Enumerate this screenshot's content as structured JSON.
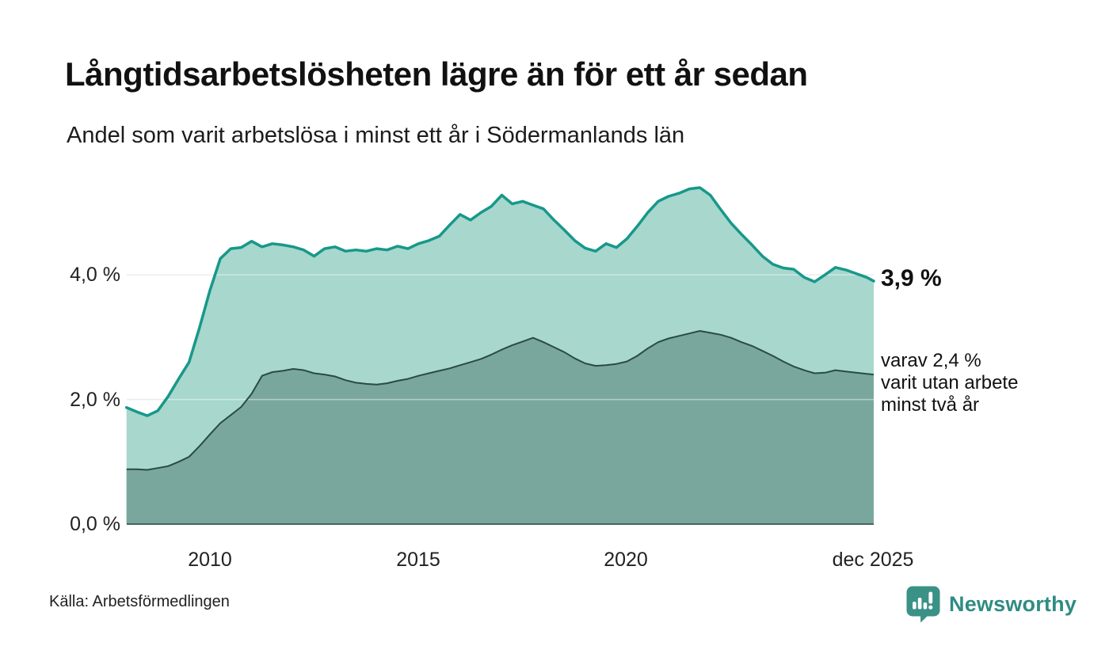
{
  "header": {
    "title": "Långtidsarbetslösheten lägre än för ett år sedan",
    "subtitle": "Andel som varit arbetslösa i minst ett år i Södermanlands län"
  },
  "annotations": {
    "latest_total": "3,9 %",
    "breakdown_line1": "varav 2,4 %",
    "breakdown_line2": "varit utan arbete",
    "breakdown_line3": "minst två år"
  },
  "footer": {
    "source": "Källa: Arbetsförmedlingen",
    "brand": "Newsworthy"
  },
  "colors": {
    "line_total": "#17988a",
    "fill_total": "#a7d7cd",
    "line_two_year": "#2b4a45",
    "fill_two_year": "#79a79e",
    "gridline": "#dcdcdc",
    "gridline_over_fill": "rgba(255,255,255,0.45)",
    "axis_baseline": "#4a6561",
    "brand_teal": "#2f8c83",
    "logo_teal": "#3a9186"
  },
  "chart_data": {
    "type": "area",
    "title": "Långtidsarbetslösheten lägre än för ett år sedan",
    "subtitle": "Andel som varit arbetslösa i minst ett år i Södermanlands län",
    "unit": "%",
    "x_axis": {
      "range": [
        2008.0,
        2025.92
      ],
      "ticks": [
        {
          "x": 2010,
          "label": "2010"
        },
        {
          "x": 2015,
          "label": "2015"
        },
        {
          "x": 2020,
          "label": "2020"
        },
        {
          "x": 2025.92,
          "label": "dec 2025"
        }
      ]
    },
    "y_axis": {
      "range": [
        0,
        5.8
      ],
      "gridlines": [
        2.0,
        4.0
      ],
      "ticks": [
        {
          "v": 0,
          "label": "0,0 %"
        },
        {
          "v": 2,
          "label": "2,0 %"
        },
        {
          "v": 4,
          "label": "4,0 %"
        }
      ]
    },
    "legend": "none",
    "series": [
      {
        "name": "Arbetslösa minst ett år",
        "latest_value": 3.9,
        "points": [
          [
            2008.0,
            1.87
          ],
          [
            2008.25,
            1.8
          ],
          [
            2008.5,
            1.74
          ],
          [
            2008.75,
            1.82
          ],
          [
            2009.0,
            2.05
          ],
          [
            2009.25,
            2.33
          ],
          [
            2009.5,
            2.6
          ],
          [
            2009.75,
            3.15
          ],
          [
            2010.0,
            3.75
          ],
          [
            2010.25,
            4.26
          ],
          [
            2010.5,
            4.42
          ],
          [
            2010.75,
            4.44
          ],
          [
            2011.0,
            4.54
          ],
          [
            2011.25,
            4.45
          ],
          [
            2011.5,
            4.5
          ],
          [
            2011.75,
            4.48
          ],
          [
            2012.0,
            4.45
          ],
          [
            2012.25,
            4.4
          ],
          [
            2012.5,
            4.3
          ],
          [
            2012.75,
            4.42
          ],
          [
            2013.0,
            4.45
          ],
          [
            2013.25,
            4.38
          ],
          [
            2013.5,
            4.4
          ],
          [
            2013.75,
            4.38
          ],
          [
            2014.0,
            4.42
          ],
          [
            2014.25,
            4.4
          ],
          [
            2014.5,
            4.46
          ],
          [
            2014.75,
            4.42
          ],
          [
            2015.0,
            4.5
          ],
          [
            2015.25,
            4.55
          ],
          [
            2015.5,
            4.62
          ],
          [
            2015.75,
            4.8
          ],
          [
            2016.0,
            4.97
          ],
          [
            2016.25,
            4.88
          ],
          [
            2016.5,
            5.0
          ],
          [
            2016.75,
            5.1
          ],
          [
            2017.0,
            5.28
          ],
          [
            2017.25,
            5.14
          ],
          [
            2017.5,
            5.18
          ],
          [
            2017.75,
            5.12
          ],
          [
            2018.0,
            5.06
          ],
          [
            2018.25,
            4.88
          ],
          [
            2018.5,
            4.72
          ],
          [
            2018.75,
            4.55
          ],
          [
            2019.0,
            4.43
          ],
          [
            2019.25,
            4.38
          ],
          [
            2019.5,
            4.5
          ],
          [
            2019.75,
            4.44
          ],
          [
            2020.0,
            4.58
          ],
          [
            2020.25,
            4.78
          ],
          [
            2020.5,
            5.0
          ],
          [
            2020.75,
            5.18
          ],
          [
            2021.0,
            5.26
          ],
          [
            2021.25,
            5.31
          ],
          [
            2021.5,
            5.38
          ],
          [
            2021.75,
            5.4
          ],
          [
            2022.0,
            5.28
          ],
          [
            2022.25,
            5.05
          ],
          [
            2022.5,
            4.83
          ],
          [
            2022.75,
            4.65
          ],
          [
            2023.0,
            4.48
          ],
          [
            2023.25,
            4.3
          ],
          [
            2023.5,
            4.17
          ],
          [
            2023.75,
            4.11
          ],
          [
            2024.0,
            4.09
          ],
          [
            2024.25,
            3.96
          ],
          [
            2024.5,
            3.89
          ],
          [
            2024.75,
            4.0
          ],
          [
            2025.0,
            4.12
          ],
          [
            2025.25,
            4.08
          ],
          [
            2025.5,
            4.02
          ],
          [
            2025.75,
            3.96
          ],
          [
            2025.92,
            3.9
          ]
        ]
      },
      {
        "name": "Arbetslösa minst två år",
        "latest_value": 2.4,
        "points": [
          [
            2008.0,
            0.88
          ],
          [
            2008.25,
            0.88
          ],
          [
            2008.5,
            0.87
          ],
          [
            2008.75,
            0.9
          ],
          [
            2009.0,
            0.93
          ],
          [
            2009.25,
            1.0
          ],
          [
            2009.5,
            1.08
          ],
          [
            2009.75,
            1.25
          ],
          [
            2010.0,
            1.44
          ],
          [
            2010.25,
            1.62
          ],
          [
            2010.5,
            1.75
          ],
          [
            2010.75,
            1.88
          ],
          [
            2011.0,
            2.09
          ],
          [
            2011.25,
            2.38
          ],
          [
            2011.5,
            2.44
          ],
          [
            2011.75,
            2.46
          ],
          [
            2012.0,
            2.49
          ],
          [
            2012.25,
            2.47
          ],
          [
            2012.5,
            2.42
          ],
          [
            2012.75,
            2.4
          ],
          [
            2013.0,
            2.37
          ],
          [
            2013.25,
            2.31
          ],
          [
            2013.5,
            2.27
          ],
          [
            2013.75,
            2.25
          ],
          [
            2014.0,
            2.24
          ],
          [
            2014.25,
            2.26
          ],
          [
            2014.5,
            2.3
          ],
          [
            2014.75,
            2.33
          ],
          [
            2015.0,
            2.38
          ],
          [
            2015.25,
            2.42
          ],
          [
            2015.5,
            2.46
          ],
          [
            2015.75,
            2.5
          ],
          [
            2016.0,
            2.55
          ],
          [
            2016.25,
            2.6
          ],
          [
            2016.5,
            2.65
          ],
          [
            2016.75,
            2.72
          ],
          [
            2017.0,
            2.8
          ],
          [
            2017.25,
            2.87
          ],
          [
            2017.5,
            2.93
          ],
          [
            2017.75,
            2.99
          ],
          [
            2018.0,
            2.92
          ],
          [
            2018.25,
            2.84
          ],
          [
            2018.5,
            2.76
          ],
          [
            2018.75,
            2.66
          ],
          [
            2019.0,
            2.58
          ],
          [
            2019.25,
            2.54
          ],
          [
            2019.5,
            2.55
          ],
          [
            2019.75,
            2.57
          ],
          [
            2020.0,
            2.61
          ],
          [
            2020.25,
            2.7
          ],
          [
            2020.5,
            2.82
          ],
          [
            2020.75,
            2.92
          ],
          [
            2021.0,
            2.98
          ],
          [
            2021.25,
            3.02
          ],
          [
            2021.5,
            3.06
          ],
          [
            2021.75,
            3.1
          ],
          [
            2022.0,
            3.07
          ],
          [
            2022.25,
            3.04
          ],
          [
            2022.5,
            2.99
          ],
          [
            2022.75,
            2.92
          ],
          [
            2023.0,
            2.86
          ],
          [
            2023.25,
            2.78
          ],
          [
            2023.5,
            2.7
          ],
          [
            2023.75,
            2.61
          ],
          [
            2024.0,
            2.53
          ],
          [
            2024.25,
            2.47
          ],
          [
            2024.5,
            2.42
          ],
          [
            2024.75,
            2.43
          ],
          [
            2025.0,
            2.47
          ],
          [
            2025.25,
            2.45
          ],
          [
            2025.5,
            2.43
          ],
          [
            2025.75,
            2.41
          ],
          [
            2025.92,
            2.4
          ]
        ]
      }
    ]
  }
}
